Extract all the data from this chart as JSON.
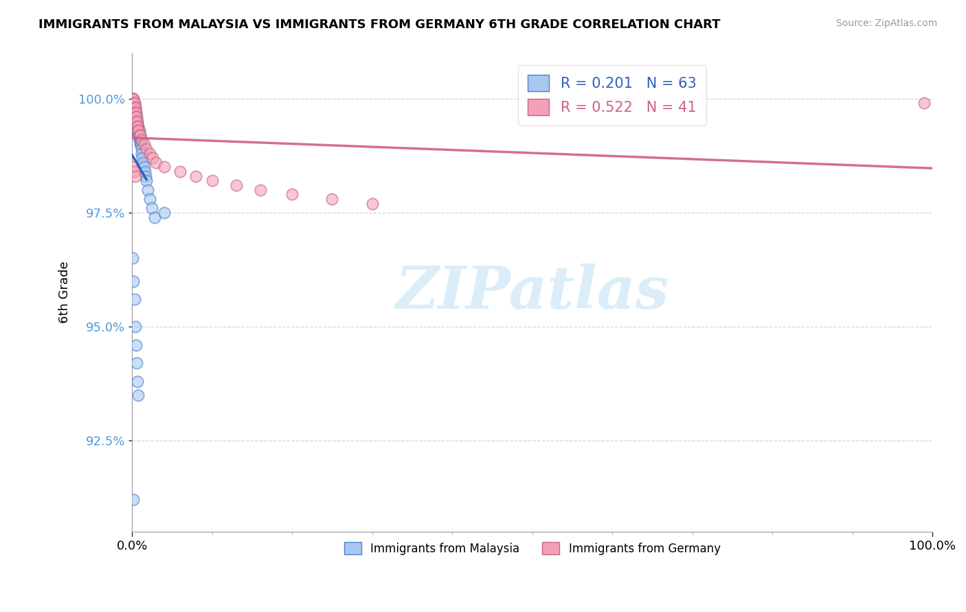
{
  "title": "IMMIGRANTS FROM MALAYSIA VS IMMIGRANTS FROM GERMANY 6TH GRADE CORRELATION CHART",
  "source": "Source: ZipAtlas.com",
  "ylabel": "6th Grade",
  "ytick_vals": [
    0.925,
    0.95,
    0.975,
    1.0
  ],
  "ytick_labels": [
    "92.5%",
    "95.0%",
    "97.5%",
    "100.0%"
  ],
  "xtick_vals": [
    0.0,
    1.0
  ],
  "xtick_labels": [
    "0.0%",
    "100.0%"
  ],
  "xlim": [
    0.0,
    1.0
  ],
  "ylim": [
    0.905,
    1.01
  ],
  "malaysia_R": 0.201,
  "malaysia_N": 63,
  "germany_R": 0.522,
  "germany_N": 41,
  "malaysia_fill": "#A8C8F0",
  "malaysia_edge": "#4A80D0",
  "germany_fill": "#F4A0B8",
  "germany_edge": "#D06080",
  "malaysia_line": "#3060C0",
  "germany_line": "#D06080",
  "grid_color": "#CCCCCC",
  "watermark_color": "#D5EAF8",
  "ytick_color": "#5599DD",
  "malaysia_x": [
    0.001,
    0.001,
    0.001,
    0.002,
    0.002,
    0.002,
    0.002,
    0.002,
    0.003,
    0.003,
    0.003,
    0.003,
    0.003,
    0.004,
    0.004,
    0.004,
    0.004,
    0.005,
    0.005,
    0.005,
    0.005,
    0.005,
    0.006,
    0.006,
    0.006,
    0.006,
    0.007,
    0.007,
    0.007,
    0.007,
    0.008,
    0.008,
    0.008,
    0.009,
    0.009,
    0.009,
    0.01,
    0.01,
    0.01,
    0.011,
    0.011,
    0.012,
    0.012,
    0.013,
    0.014,
    0.015,
    0.016,
    0.017,
    0.018,
    0.02,
    0.022,
    0.025,
    0.028,
    0.001,
    0.002,
    0.003,
    0.004,
    0.005,
    0.006,
    0.007,
    0.008,
    0.04,
    0.002
  ],
  "malaysia_y": [
    1.0,
    1.0,
    0.999,
    1.0,
    0.999,
    0.999,
    0.998,
    0.997,
    0.999,
    0.998,
    0.997,
    0.996,
    0.995,
    0.998,
    0.997,
    0.996,
    0.995,
    0.997,
    0.996,
    0.995,
    0.994,
    0.993,
    0.996,
    0.995,
    0.994,
    0.993,
    0.995,
    0.994,
    0.993,
    0.992,
    0.994,
    0.993,
    0.992,
    0.993,
    0.992,
    0.991,
    0.992,
    0.991,
    0.99,
    0.991,
    0.99,
    0.989,
    0.988,
    0.987,
    0.986,
    0.985,
    0.984,
    0.983,
    0.982,
    0.98,
    0.978,
    0.976,
    0.974,
    0.965,
    0.96,
    0.956,
    0.95,
    0.946,
    0.942,
    0.938,
    0.935,
    0.975,
    0.912
  ],
  "germany_x": [
    0.001,
    0.001,
    0.002,
    0.002,
    0.002,
    0.003,
    0.003,
    0.003,
    0.004,
    0.004,
    0.004,
    0.005,
    0.005,
    0.005,
    0.006,
    0.006,
    0.007,
    0.007,
    0.008,
    0.008,
    0.009,
    0.01,
    0.012,
    0.015,
    0.018,
    0.022,
    0.026,
    0.03,
    0.04,
    0.06,
    0.08,
    0.1,
    0.13,
    0.16,
    0.2,
    0.25,
    0.3,
    0.002,
    0.003,
    0.004,
    0.99
  ],
  "germany_y": [
    1.0,
    0.999,
    1.0,
    0.999,
    0.999,
    0.999,
    0.998,
    0.998,
    0.998,
    0.997,
    0.997,
    0.997,
    0.996,
    0.996,
    0.995,
    0.995,
    0.994,
    0.994,
    0.993,
    0.993,
    0.992,
    0.992,
    0.991,
    0.99,
    0.989,
    0.988,
    0.987,
    0.986,
    0.985,
    0.984,
    0.983,
    0.982,
    0.981,
    0.98,
    0.979,
    0.978,
    0.977,
    0.985,
    0.984,
    0.983,
    0.999
  ]
}
